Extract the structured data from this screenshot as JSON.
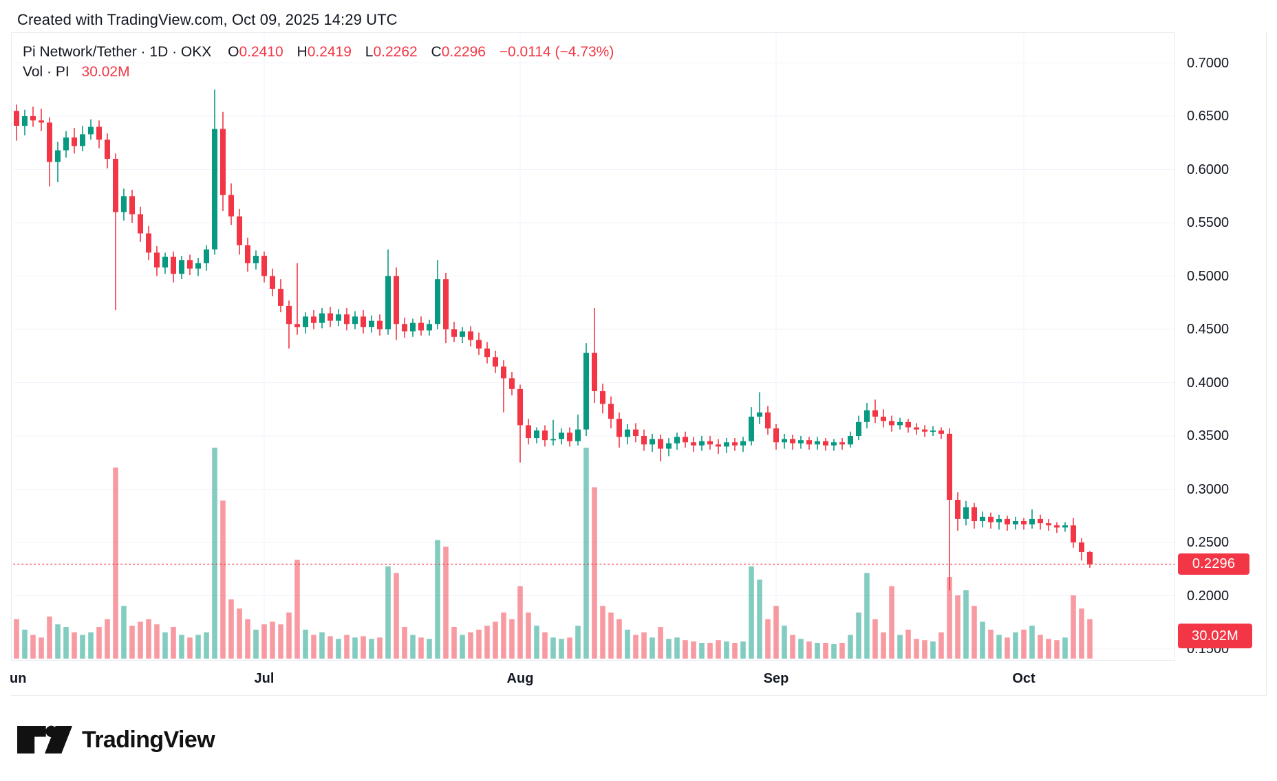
{
  "header": {
    "created": "Created with TradingView.com, Oct 09, 2025 14:29 UTC"
  },
  "legend": {
    "title": "Pi Network/Tether · 1D · OKX",
    "ohlc": [
      {
        "label": "O",
        "value": "0.2410"
      },
      {
        "label": "H",
        "value": "0.2419"
      },
      {
        "label": "L",
        "value": "0.2262"
      },
      {
        "label": "C",
        "value": "0.2296"
      }
    ],
    "change": "−0.0114 (−4.73%)",
    "vol_label": "Vol · PI",
    "vol_value": "30.02M"
  },
  "footer": {
    "brand": "TradingView"
  },
  "colors": {
    "up": "#089981",
    "down": "#F23645",
    "vol_up": "rgba(8,153,129,0.5)",
    "vol_down": "rgba(242,54,69,0.5)",
    "grid": "#f0f3fa",
    "border": "#e7eaf0",
    "text": "#131722",
    "badge": "#F23645",
    "dotted_line": "#F23645"
  },
  "chart_data": {
    "type": "candlestick",
    "title": "Pi Network/Tether 1D OKX",
    "volume_overlay": true,
    "grid": true,
    "price_axis": {
      "side": "right",
      "tick_step": 0.05,
      "range_top": 0.7,
      "range_bottom": 0.14,
      "ticks": [
        "0.7000",
        "0.6500",
        "0.6000",
        "0.5500",
        "0.5000",
        "0.4500",
        "0.4000",
        "0.3500",
        "0.3000",
        "0.2500",
        "0.2000",
        "0.1500"
      ]
    },
    "month_ticks": [
      {
        "label": "un",
        "day": 0
      },
      {
        "label": "Jul",
        "day": 30
      },
      {
        "label": "Aug",
        "day": 61
      },
      {
        "label": "Sep",
        "day": 92
      },
      {
        "label": "Oct",
        "day": 122
      }
    ],
    "current": {
      "price": "0.2296",
      "price_value": 0.2296,
      "volume": "30.02M",
      "change": "−0.0114 (−4.73%)"
    },
    "candles": [
      [
        "Jun 1",
        0.655,
        0.661,
        0.627,
        0.641,
        30
      ],
      [
        "Jun 2",
        0.641,
        0.656,
        0.632,
        0.65,
        22
      ],
      [
        "Jun 3",
        0.65,
        0.659,
        0.64,
        0.646,
        18
      ],
      [
        "Jun 4",
        0.646,
        0.657,
        0.636,
        0.644,
        16
      ],
      [
        "Jun 5",
        0.644,
        0.649,
        0.584,
        0.607,
        32
      ],
      [
        "Jun 6",
        0.607,
        0.626,
        0.588,
        0.618,
        26
      ],
      [
        "Jun 7",
        0.618,
        0.636,
        0.611,
        0.63,
        24
      ],
      [
        "Jun 8",
        0.63,
        0.639,
        0.615,
        0.622,
        20
      ],
      [
        "Jun 9",
        0.622,
        0.641,
        0.617,
        0.633,
        18
      ],
      [
        "Jun 10",
        0.633,
        0.647,
        0.628,
        0.64,
        20
      ],
      [
        "Jun 11",
        0.64,
        0.646,
        0.62,
        0.628,
        24
      ],
      [
        "Jun 12",
        0.628,
        0.634,
        0.601,
        0.61,
        30
      ],
      [
        "Jun 13",
        0.61,
        0.615,
        0.468,
        0.56,
        145
      ],
      [
        "Jun 14",
        0.56,
        0.582,
        0.552,
        0.575,
        40
      ],
      [
        "Jun 15",
        0.575,
        0.581,
        0.55,
        0.558,
        25
      ],
      [
        "Jun 16",
        0.558,
        0.565,
        0.532,
        0.54,
        28
      ],
      [
        "Jun 17",
        0.54,
        0.547,
        0.515,
        0.522,
        30
      ],
      [
        "Jun 18",
        0.522,
        0.528,
        0.5,
        0.508,
        26
      ],
      [
        "Jun 19",
        0.508,
        0.522,
        0.502,
        0.518,
        20
      ],
      [
        "Jun 20",
        0.518,
        0.523,
        0.494,
        0.502,
        24
      ],
      [
        "Jun 21",
        0.502,
        0.519,
        0.497,
        0.515,
        18
      ],
      [
        "Jun 22",
        0.515,
        0.52,
        0.501,
        0.507,
        16
      ],
      [
        "Jun 23",
        0.507,
        0.517,
        0.5,
        0.512,
        18
      ],
      [
        "Jun 24",
        0.512,
        0.529,
        0.505,
        0.525,
        20
      ],
      [
        "Jun 25",
        0.525,
        0.675,
        0.52,
        0.638,
        160
      ],
      [
        "Jun 26",
        0.638,
        0.654,
        0.561,
        0.576,
        120
      ],
      [
        "Jun 27",
        0.576,
        0.587,
        0.548,
        0.556,
        45
      ],
      [
        "Jun 28",
        0.556,
        0.563,
        0.52,
        0.529,
        38
      ],
      [
        "Jun 29",
        0.529,
        0.536,
        0.504,
        0.512,
        30
      ],
      [
        "Jun 30",
        0.512,
        0.524,
        0.506,
        0.519,
        22
      ],
      [
        "Jul 1",
        0.519,
        0.523,
        0.494,
        0.5,
        26
      ],
      [
        "Jul 2",
        0.5,
        0.507,
        0.481,
        0.488,
        28
      ],
      [
        "Jul 3",
        0.488,
        0.497,
        0.466,
        0.472,
        26
      ],
      [
        "Jul 4",
        0.472,
        0.477,
        0.432,
        0.455,
        35
      ],
      [
        "Jul 5",
        0.455,
        0.512,
        0.445,
        0.452,
        75
      ],
      [
        "Jul 6",
        0.452,
        0.466,
        0.446,
        0.462,
        22
      ],
      [
        "Jul 7",
        0.462,
        0.468,
        0.45,
        0.456,
        18
      ],
      [
        "Jul 8",
        0.456,
        0.47,
        0.451,
        0.465,
        20
      ],
      [
        "Jul 9",
        0.465,
        0.471,
        0.452,
        0.458,
        17
      ],
      [
        "Jul 10",
        0.458,
        0.469,
        0.453,
        0.464,
        15
      ],
      [
        "Jul 11",
        0.464,
        0.47,
        0.449,
        0.455,
        18
      ],
      [
        "Jul 12",
        0.455,
        0.467,
        0.45,
        0.462,
        16
      ],
      [
        "Jul 13",
        0.462,
        0.468,
        0.446,
        0.452,
        17
      ],
      [
        "Jul 14",
        0.452,
        0.463,
        0.447,
        0.458,
        15
      ],
      [
        "Jul 15",
        0.458,
        0.464,
        0.444,
        0.45,
        16
      ],
      [
        "Jul 16",
        0.45,
        0.525,
        0.445,
        0.5,
        70
      ],
      [
        "Jul 17",
        0.5,
        0.508,
        0.44,
        0.455,
        65
      ],
      [
        "Jul 18",
        0.455,
        0.461,
        0.442,
        0.448,
        24
      ],
      [
        "Jul 19",
        0.448,
        0.46,
        0.443,
        0.456,
        18
      ],
      [
        "Jul 20",
        0.456,
        0.462,
        0.444,
        0.449,
        16
      ],
      [
        "Jul 21",
        0.449,
        0.459,
        0.444,
        0.455,
        15
      ],
      [
        "Jul 22",
        0.455,
        0.515,
        0.45,
        0.497,
        90
      ],
      [
        "Jul 23",
        0.497,
        0.503,
        0.437,
        0.45,
        85
      ],
      [
        "Jul 24",
        0.45,
        0.457,
        0.438,
        0.443,
        24
      ],
      [
        "Jul 25",
        0.443,
        0.452,
        0.437,
        0.448,
        18
      ],
      [
        "Jul 26",
        0.448,
        0.453,
        0.434,
        0.44,
        20
      ],
      [
        "Jul 27",
        0.44,
        0.447,
        0.426,
        0.432,
        22
      ],
      [
        "Jul 28",
        0.432,
        0.438,
        0.418,
        0.424,
        25
      ],
      [
        "Jul 29",
        0.424,
        0.43,
        0.409,
        0.415,
        28
      ],
      [
        "Jul 30",
        0.415,
        0.421,
        0.372,
        0.404,
        35
      ],
      [
        "Jul 31",
        0.404,
        0.41,
        0.388,
        0.394,
        30
      ],
      [
        "Aug 1",
        0.394,
        0.398,
        0.325,
        0.36,
        55
      ],
      [
        "Aug 2",
        0.36,
        0.366,
        0.342,
        0.348,
        35
      ],
      [
        "Aug 3",
        0.348,
        0.358,
        0.343,
        0.355,
        25
      ],
      [
        "Aug 4",
        0.355,
        0.36,
        0.34,
        0.346,
        20
      ],
      [
        "Aug 5",
        0.346,
        0.365,
        0.341,
        0.347,
        16
      ],
      [
        "Aug 6",
        0.347,
        0.357,
        0.342,
        0.353,
        15
      ],
      [
        "Aug 7",
        0.353,
        0.358,
        0.34,
        0.345,
        16
      ],
      [
        "Aug 8",
        0.345,
        0.37,
        0.341,
        0.356,
        25
      ],
      [
        "Aug 9",
        0.356,
        0.437,
        0.35,
        0.428,
        160
      ],
      [
        "Aug 10",
        0.428,
        0.47,
        0.381,
        0.392,
        130
      ],
      [
        "Aug 11",
        0.392,
        0.399,
        0.371,
        0.38,
        40
      ],
      [
        "Aug 12",
        0.38,
        0.387,
        0.357,
        0.366,
        35
      ],
      [
        "Aug 13",
        0.366,
        0.372,
        0.339,
        0.349,
        30
      ],
      [
        "Aug 14",
        0.349,
        0.361,
        0.342,
        0.356,
        22
      ],
      [
        "Aug 15",
        0.356,
        0.362,
        0.344,
        0.35,
        18
      ],
      [
        "Aug 16",
        0.35,
        0.356,
        0.336,
        0.342,
        20
      ],
      [
        "Aug 17",
        0.342,
        0.352,
        0.335,
        0.347,
        16
      ],
      [
        "Aug 18",
        0.347,
        0.351,
        0.326,
        0.338,
        24
      ],
      [
        "Aug 19",
        0.338,
        0.348,
        0.331,
        0.343,
        15
      ],
      [
        "Aug 20",
        0.343,
        0.353,
        0.337,
        0.349,
        16
      ],
      [
        "Aug 21",
        0.349,
        0.354,
        0.339,
        0.344,
        14
      ],
      [
        "Aug 22",
        0.344,
        0.349,
        0.335,
        0.341,
        13
      ],
      [
        "Aug 23",
        0.341,
        0.35,
        0.336,
        0.345,
        12
      ],
      [
        "Aug 24",
        0.345,
        0.35,
        0.337,
        0.342,
        12
      ],
      [
        "Aug 25",
        0.342,
        0.347,
        0.333,
        0.34,
        14
      ],
      [
        "Aug 26",
        0.34,
        0.348,
        0.334,
        0.344,
        13
      ],
      [
        "Aug 27",
        0.344,
        0.348,
        0.336,
        0.341,
        12
      ],
      [
        "Aug 28",
        0.341,
        0.349,
        0.335,
        0.345,
        13
      ],
      [
        "Aug 29",
        0.345,
        0.377,
        0.341,
        0.368,
        70
      ],
      [
        "Aug 30",
        0.368,
        0.391,
        0.361,
        0.372,
        60
      ],
      [
        "Aug 31",
        0.372,
        0.378,
        0.351,
        0.357,
        30
      ],
      [
        "Sep 1",
        0.357,
        0.361,
        0.337,
        0.344,
        40
      ],
      [
        "Sep 2",
        0.344,
        0.352,
        0.338,
        0.347,
        25
      ],
      [
        "Sep 3",
        0.347,
        0.351,
        0.337,
        0.343,
        18
      ],
      [
        "Sep 4",
        0.343,
        0.35,
        0.338,
        0.346,
        15
      ],
      [
        "Sep 5",
        0.346,
        0.349,
        0.337,
        0.342,
        13
      ],
      [
        "Sep 6",
        0.342,
        0.349,
        0.337,
        0.345,
        12
      ],
      [
        "Sep 7",
        0.345,
        0.348,
        0.336,
        0.341,
        12
      ],
      [
        "Sep 8",
        0.341,
        0.347,
        0.336,
        0.344,
        11
      ],
      [
        "Sep 9",
        0.344,
        0.348,
        0.337,
        0.342,
        12
      ],
      [
        "Sep 10",
        0.342,
        0.354,
        0.339,
        0.35,
        18
      ],
      [
        "Sep 11",
        0.35,
        0.369,
        0.346,
        0.363,
        35
      ],
      [
        "Sep 12",
        0.363,
        0.381,
        0.357,
        0.374,
        65
      ],
      [
        "Sep 13",
        0.374,
        0.384,
        0.362,
        0.368,
        30
      ],
      [
        "Sep 14",
        0.368,
        0.375,
        0.358,
        0.364,
        20
      ],
      [
        "Sep 15",
        0.364,
        0.369,
        0.354,
        0.36,
        55
      ],
      [
        "Sep 16",
        0.36,
        0.367,
        0.356,
        0.363,
        18
      ],
      [
        "Sep 17",
        0.363,
        0.366,
        0.353,
        0.358,
        22
      ],
      [
        "Sep 18",
        0.358,
        0.362,
        0.351,
        0.356,
        15
      ],
      [
        "Sep 19",
        0.356,
        0.36,
        0.349,
        0.354,
        14
      ],
      [
        "Sep 20",
        0.354,
        0.359,
        0.35,
        0.355,
        13
      ],
      [
        "Sep 21",
        0.355,
        0.358,
        0.347,
        0.352,
        20
      ],
      [
        "Sep 22",
        0.352,
        0.357,
        0.205,
        0.29,
        62
      ],
      [
        "Sep 23",
        0.29,
        0.297,
        0.261,
        0.272,
        48
      ],
      [
        "Sep 24",
        0.272,
        0.289,
        0.266,
        0.283,
        52
      ],
      [
        "Sep 25",
        0.283,
        0.287,
        0.263,
        0.27,
        40
      ],
      [
        "Sep 26",
        0.27,
        0.279,
        0.264,
        0.274,
        28
      ],
      [
        "Sep 27",
        0.274,
        0.278,
        0.263,
        0.269,
        22
      ],
      [
        "Sep 28",
        0.269,
        0.276,
        0.262,
        0.272,
        18
      ],
      [
        "Sep 29",
        0.272,
        0.275,
        0.261,
        0.267,
        16
      ],
      [
        "Sep 30",
        0.267,
        0.274,
        0.262,
        0.27,
        20
      ],
      [
        "Oct 1",
        0.27,
        0.273,
        0.262,
        0.267,
        22
      ],
      [
        "Oct 2",
        0.267,
        0.281,
        0.263,
        0.272,
        25
      ],
      [
        "Oct 3",
        0.272,
        0.276,
        0.262,
        0.268,
        18
      ],
      [
        "Oct 4",
        0.268,
        0.272,
        0.261,
        0.266,
        15
      ],
      [
        "Oct 5",
        0.266,
        0.269,
        0.259,
        0.264,
        14
      ],
      [
        "Oct 6",
        0.264,
        0.269,
        0.26,
        0.266,
        16
      ],
      [
        "Oct 7",
        0.266,
        0.273,
        0.245,
        0.25,
        48
      ],
      [
        "Oct 8",
        0.25,
        0.254,
        0.233,
        0.241,
        38
      ],
      [
        "Oct 9",
        0.241,
        0.2419,
        0.2262,
        0.2296,
        30.02
      ]
    ]
  }
}
